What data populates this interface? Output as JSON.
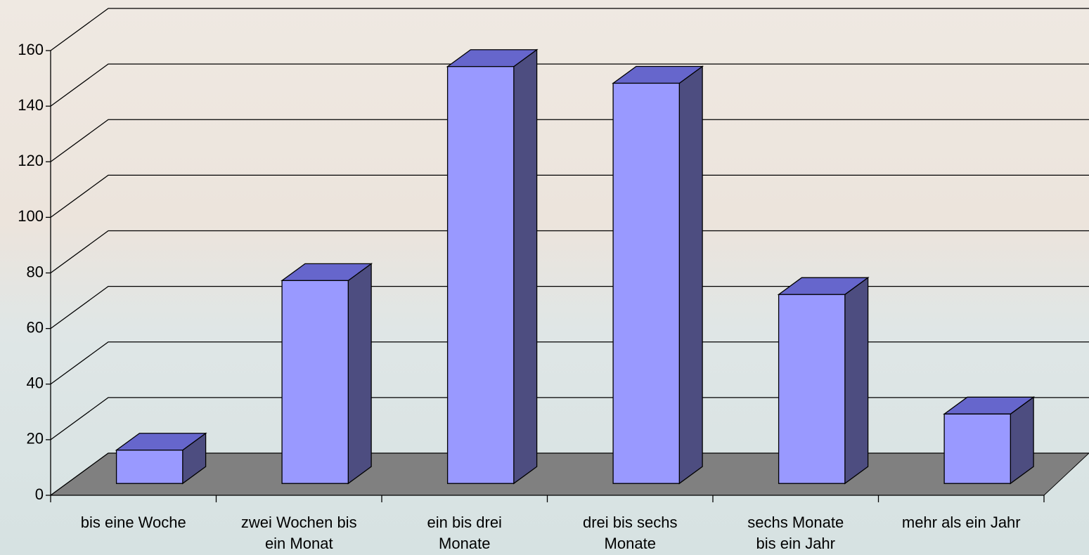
{
  "chart_data": {
    "type": "bar3d",
    "categories": [
      [
        "bis eine Woche"
      ],
      [
        "zwei Wochen bis",
        "ein Monat"
      ],
      [
        "ein bis drei",
        "Monate"
      ],
      [
        "drei bis sechs",
        "Monate"
      ],
      [
        "sechs Monate",
        "bis ein Jahr"
      ],
      [
        "mehr als ein Jahr"
      ]
    ],
    "values": [
      12,
      73,
      150,
      144,
      68,
      25
    ],
    "colors": {
      "front": "#9999ff",
      "top": "#6666cc",
      "side": "#4d4d80",
      "floor": "#808080"
    },
    "ylim": [
      0,
      160
    ],
    "yticks": [
      0,
      20,
      40,
      60,
      80,
      100,
      120,
      140,
      160
    ],
    "grid": true
  }
}
